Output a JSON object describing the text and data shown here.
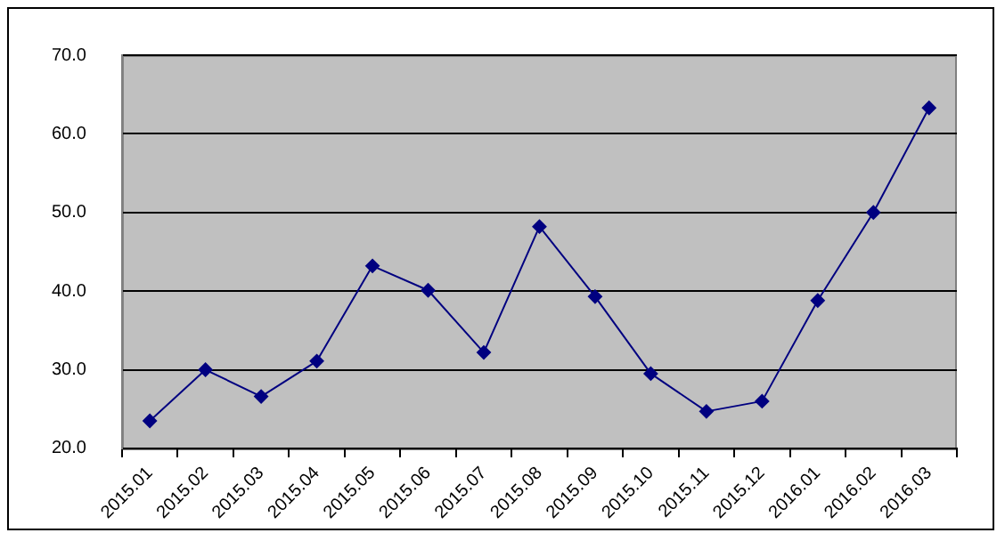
{
  "chart_data": {
    "type": "line",
    "categories": [
      "2015.01",
      "2015.02",
      "2015.03",
      "2015.04",
      "2015.05",
      "2015.06",
      "2015.07",
      "2015.08",
      "2015.09",
      "2015.10",
      "2015.11",
      "2015.12",
      "2016.01",
      "2016.02",
      "2016.03"
    ],
    "series": [
      {
        "color": "#000080",
        "values": [
          23.5,
          30.0,
          26.6,
          31.1,
          43.2,
          40.1,
          32.2,
          48.2,
          39.3,
          29.5,
          24.7,
          26.0,
          38.8,
          50.0,
          63.3
        ]
      }
    ],
    "ylim": [
      20,
      70
    ],
    "yticks": [
      {
        "value": 20,
        "label": "20.0"
      },
      {
        "value": 30,
        "label": "30.0"
      },
      {
        "value": 40,
        "label": "40.0"
      },
      {
        "value": 50,
        "label": "50.0"
      },
      {
        "value": 60,
        "label": "60.0"
      },
      {
        "value": 70,
        "label": "70.0"
      }
    ],
    "grid": "y",
    "legend": false,
    "marker": "diamond",
    "line_style": "solid"
  }
}
